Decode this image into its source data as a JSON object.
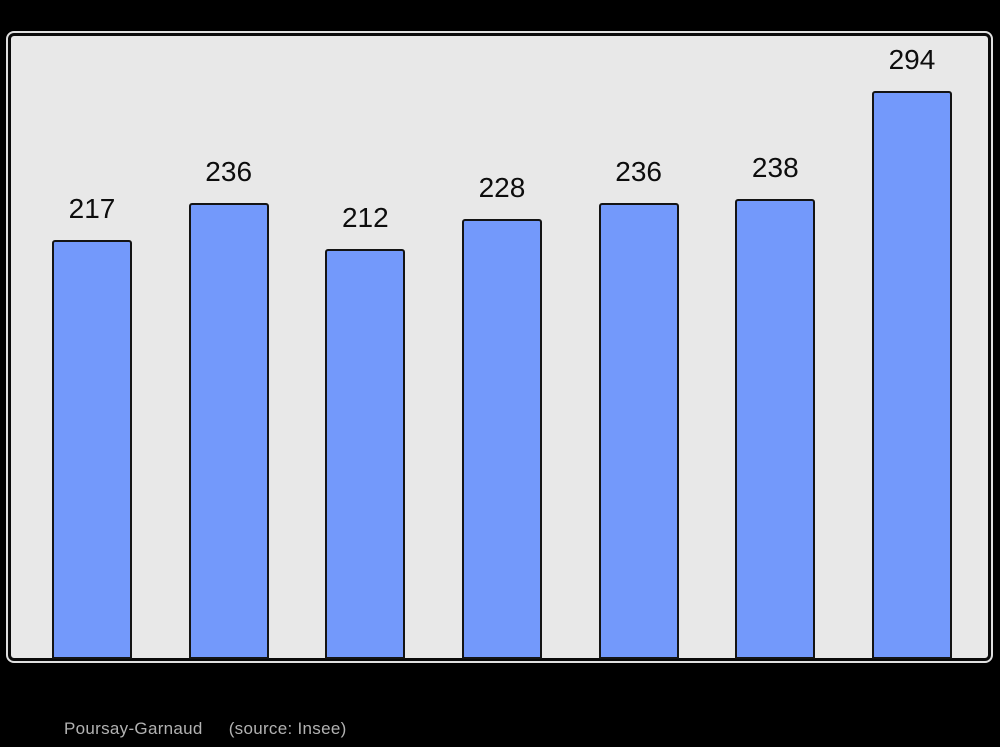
{
  "page": {
    "background": "#000000"
  },
  "chart_data": {
    "type": "bar",
    "title": "",
    "xlabel": "",
    "ylabel": "",
    "categories": [
      "",
      "",
      "",
      "",
      "",
      "",
      ""
    ],
    "values": [
      217,
      236,
      212,
      228,
      236,
      238,
      294
    ],
    "bar_value_labels": [
      "217",
      "236",
      "212",
      "228",
      "236",
      "238",
      "294"
    ],
    "ylim": [
      0,
      322
    ],
    "grid": false,
    "legend_position": "none",
    "bar_color": "#7399fb",
    "bar_border_color": "#141414",
    "plot_background": "#e8e8e8",
    "plot_border_color": "#0a0a0a",
    "label_color": "#0d0d0d"
  },
  "caption": {
    "title": "Poursay-Garnaud",
    "source": "(source: Insee)",
    "color": "#b2b2b2"
  }
}
